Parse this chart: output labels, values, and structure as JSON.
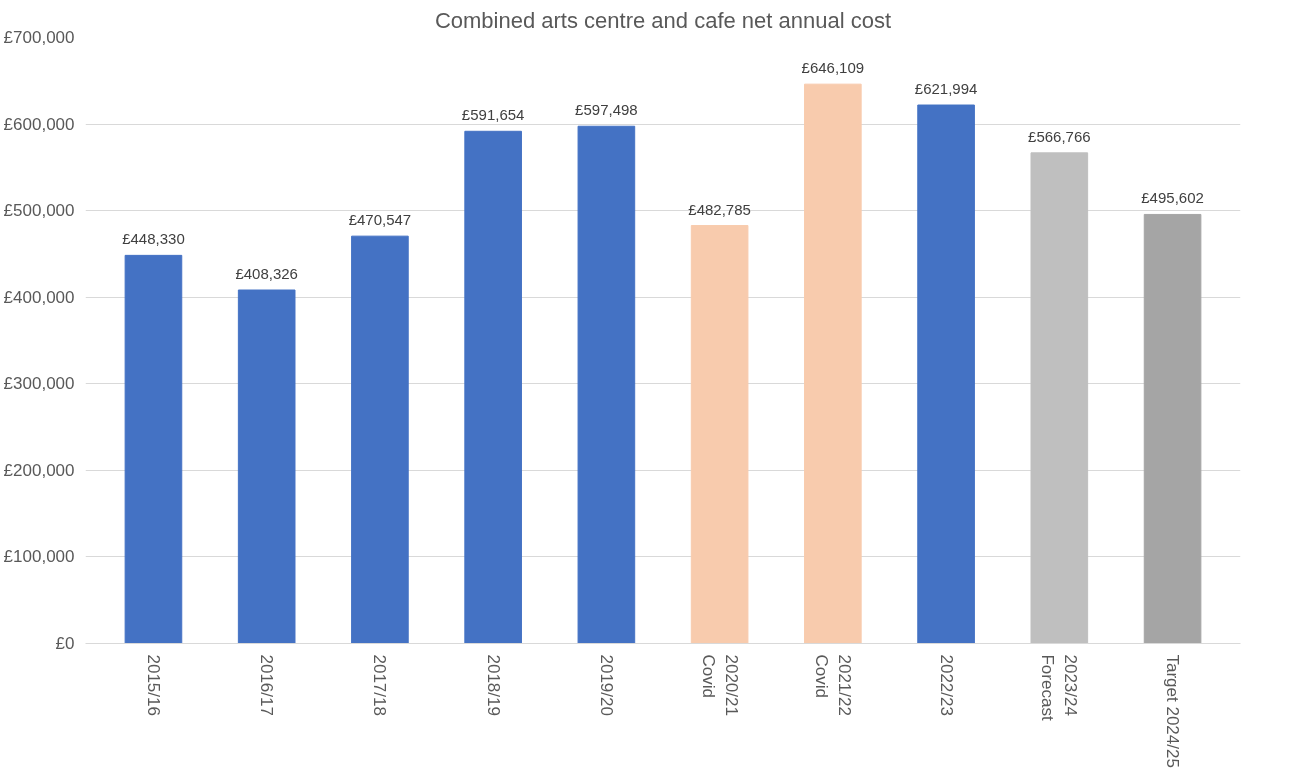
{
  "chart_data": {
    "type": "bar",
    "title": "Combined arts centre and cafe net annual cost",
    "categories": [
      "2015/16",
      "2016/17",
      "2017/18",
      "2018/19",
      "2019/20",
      "2020/21\nCovid",
      "2021/22\nCovid",
      "2022/23",
      "2023/24\nForecast",
      "Target 2024/25"
    ],
    "values": [
      448330,
      408326,
      470547,
      591654,
      597498,
      482785,
      646109,
      621994,
      566766,
      495602
    ],
    "colors": [
      "#4472c4",
      "#4472c4",
      "#4472c4",
      "#4472c4",
      "#4472c4",
      "#f8cbad",
      "#f8cbad",
      "#4472c4",
      "#bfbfbf",
      "#a5a5a5"
    ],
    "value_labels": [
      "£448,330",
      "£408,326",
      "£470,547",
      "£591,654",
      "£597,498",
      "£482,785",
      "£646,109",
      "£621,994",
      "£566,766",
      "£495,602"
    ],
    "ylim": [
      0,
      700000
    ],
    "yticks": [
      {
        "value": 0,
        "label": "£0"
      },
      {
        "value": 100000,
        "label": "£100,000"
      },
      {
        "value": 200000,
        "label": "£200,000"
      },
      {
        "value": 300000,
        "label": "£300,000"
      },
      {
        "value": 400000,
        "label": "£400,000"
      },
      {
        "value": 500000,
        "label": "£500,000"
      },
      {
        "value": 600000,
        "label": "£600,000"
      },
      {
        "value": 700000,
        "label": "£700,000"
      }
    ],
    "grid": "y"
  }
}
